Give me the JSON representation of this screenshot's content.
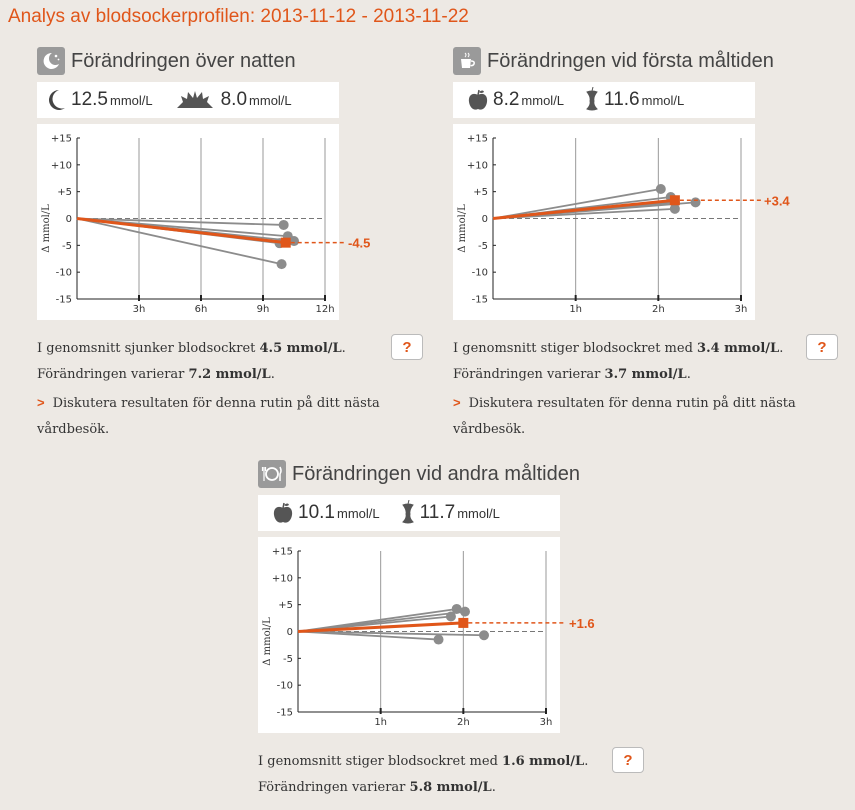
{
  "page_title": "Analys av blodsockerprofilen: 2013-11-12 - 2013-11-22",
  "colors": {
    "accent": "#e0561a",
    "gray_line": "#8c8c8c",
    "point": "#8c8c8c",
    "background": "#ede9e4"
  },
  "panels": [
    {
      "title": "Förändringen över natten",
      "icon": "night-icon",
      "before": {
        "icon": "moon-icon",
        "value": "12.5",
        "unit": "mmol/L"
      },
      "after": {
        "icon": "sunrise-icon",
        "value": "8.0",
        "unit": "mmol/L"
      },
      "summary_prefix": "I genomsnitt sjunker blodsockret ",
      "summary_value": "4.5 mmol/L",
      "summary_suffix": ".",
      "variation_prefix": "Förändringen varierar ",
      "variation_value": "7.2 mmol/L",
      "variation_suffix": ".",
      "help_label": "?",
      "discuss_arrow": ">",
      "discuss_text": "Diskutera resultaten för denna rutin på ditt nästa vårdbesök."
    },
    {
      "title": "Förändringen vid första måltiden",
      "icon": "coffee-icon",
      "before": {
        "icon": "apple-icon",
        "value": "8.2",
        "unit": "mmol/L"
      },
      "after": {
        "icon": "apple-core-icon",
        "value": "11.6",
        "unit": "mmol/L"
      },
      "summary_prefix": "I genomsnitt stiger blodsockret med ",
      "summary_value": "3.4 mmol/L",
      "summary_suffix": ".",
      "variation_prefix": "Förändringen varierar ",
      "variation_value": "3.7 mmol/L",
      "variation_suffix": ".",
      "help_label": "?",
      "discuss_arrow": ">",
      "discuss_text": "Diskutera resultaten för denna rutin på ditt nästa vårdbesök."
    },
    {
      "title": "Förändringen vid andra måltiden",
      "icon": "plate-icon",
      "before": {
        "icon": "apple-icon",
        "value": "10.1",
        "unit": "mmol/L"
      },
      "after": {
        "icon": "apple-core-icon",
        "value": "11.7",
        "unit": "mmol/L"
      },
      "summary_prefix": "I genomsnitt stiger blodsockret med ",
      "summary_value": "1.6 mmol/L",
      "summary_suffix": ".",
      "variation_prefix": "Förändringen varierar ",
      "variation_value": "5.8 mmol/L",
      "variation_suffix": ".",
      "help_label": "?"
    }
  ],
  "chart_data": [
    {
      "type": "line",
      "title": "Förändringen över natten",
      "ylabel": "Δ mmol/L",
      "ylim": [
        -15,
        15
      ],
      "yticks": [
        "+15",
        "+10",
        "+5",
        "0",
        "-5",
        "-10",
        "-15"
      ],
      "xlim": [
        0,
        12
      ],
      "xticks": [
        "3h",
        "6h",
        "9h",
        "12h"
      ],
      "reference_line": 0,
      "series": [
        {
          "name": "measurements",
          "points": [
            [
              10.0,
              -1.2
            ],
            [
              10.2,
              -3.3
            ],
            [
              10.5,
              -4.2
            ],
            [
              9.8,
              -4.6
            ],
            [
              9.9,
              -8.5
            ]
          ]
        },
        {
          "name": "average",
          "points": [
            [
              10.1,
              -4.5
            ]
          ]
        }
      ],
      "average_label": "-4.5"
    },
    {
      "type": "line",
      "title": "Förändringen vid första måltiden",
      "ylabel": "Δ mmol/L",
      "ylim": [
        -15,
        15
      ],
      "yticks": [
        "+15",
        "+10",
        "+5",
        "0",
        "-5",
        "-10",
        "-15"
      ],
      "xlim": [
        0,
        3
      ],
      "xticks": [
        "1h",
        "2h",
        "3h"
      ],
      "reference_line": 0,
      "series": [
        {
          "name": "measurements",
          "points": [
            [
              2.03,
              5.5
            ],
            [
              2.15,
              4.0
            ],
            [
              2.2,
              1.8
            ],
            [
              2.45,
              3.0
            ],
            [
              2.2,
              3.0
            ]
          ]
        },
        {
          "name": "average",
          "points": [
            [
              2.2,
              3.4
            ]
          ]
        }
      ],
      "average_label": "+3.4"
    },
    {
      "type": "line",
      "title": "Förändringen vid andra måltiden",
      "ylabel": "Δ mmol/L",
      "ylim": [
        -15,
        15
      ],
      "yticks": [
        "+15",
        "+10",
        "+5",
        "0",
        "-5",
        "-10",
        "-15"
      ],
      "xlim": [
        0,
        3
      ],
      "xticks": [
        "1h",
        "2h",
        "3h"
      ],
      "reference_line": 0,
      "series": [
        {
          "name": "measurements",
          "points": [
            [
              1.92,
              4.2
            ],
            [
              2.02,
              3.7
            ],
            [
              1.85,
              2.8
            ],
            [
              1.7,
              -1.5
            ],
            [
              2.25,
              -0.7
            ]
          ]
        },
        {
          "name": "average",
          "points": [
            [
              2.0,
              1.6
            ]
          ]
        }
      ],
      "average_label": "+1.6"
    }
  ]
}
